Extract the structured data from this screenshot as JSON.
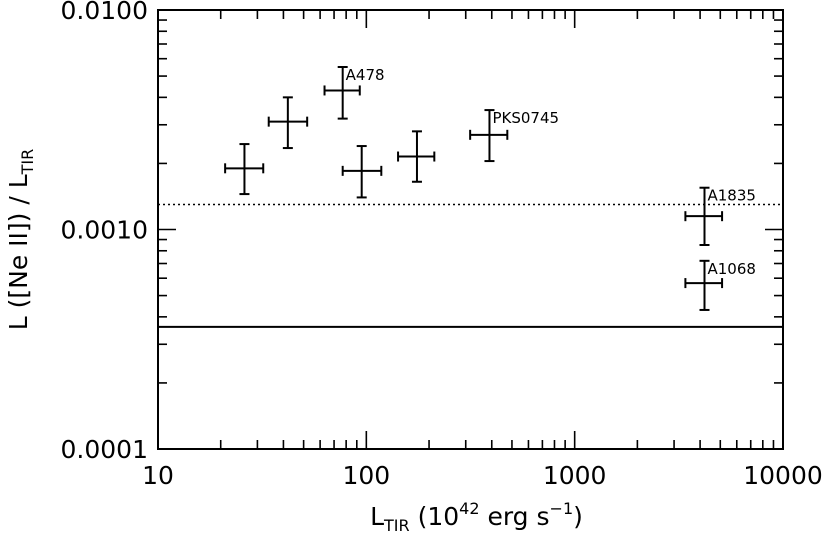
{
  "chart_data": {
    "type": "scatter",
    "x_axis": {
      "scale": "log",
      "range": [
        10,
        10000
      ],
      "tick_labels": [
        "10",
        "100",
        "1000",
        "10000"
      ],
      "label_main": "L",
      "label_sub": "TIR",
      "label_mid": " (10",
      "label_sup": "42",
      "label_unit": " erg s",
      "label_unit_sup": "−1",
      "label_close": ")"
    },
    "y_axis": {
      "scale": "log",
      "range": [
        0.0001,
        0.01
      ],
      "tick_labels": [
        "0.0001",
        "0.0010",
        "0.0100"
      ],
      "label_main": "L ([Ne II]) / L",
      "label_sub": "TIR"
    },
    "points": [
      {
        "x": 26,
        "y": 0.0019,
        "x_lo": 21,
        "x_hi": 32,
        "y_lo": 0.00145,
        "y_hi": 0.00245,
        "label": ""
      },
      {
        "x": 42,
        "y": 0.0031,
        "x_lo": 34,
        "x_hi": 52,
        "y_lo": 0.00235,
        "y_hi": 0.004,
        "label": ""
      },
      {
        "x": 77,
        "y": 0.0043,
        "x_lo": 63,
        "x_hi": 93,
        "y_lo": 0.0032,
        "y_hi": 0.0055,
        "label": "A478"
      },
      {
        "x": 95,
        "y": 0.00185,
        "x_lo": 77,
        "x_hi": 118,
        "y_lo": 0.0014,
        "y_hi": 0.0024,
        "label": ""
      },
      {
        "x": 175,
        "y": 0.00215,
        "x_lo": 142,
        "x_hi": 212,
        "y_lo": 0.00165,
        "y_hi": 0.0028,
        "label": ""
      },
      {
        "x": 390,
        "y": 0.0027,
        "x_lo": 315,
        "x_hi": 475,
        "y_lo": 0.00205,
        "y_hi": 0.0035,
        "label": "PKS0745"
      },
      {
        "x": 4200,
        "y": 0.00115,
        "x_lo": 3400,
        "x_hi": 5100,
        "y_lo": 0.00085,
        "y_hi": 0.00155,
        "label": "A1835"
      },
      {
        "x": 4200,
        "y": 0.00057,
        "x_lo": 3400,
        "x_hi": 5100,
        "y_lo": 0.00043,
        "y_hi": 0.00072,
        "label": "A1068"
      }
    ],
    "reference_lines": [
      {
        "y": 0.0013,
        "style": "dotted"
      },
      {
        "y": 0.00036,
        "style": "solid"
      }
    ],
    "grid": false,
    "legend": "none",
    "colors": {
      "ink": "#000000",
      "background": "#ffffff"
    }
  }
}
